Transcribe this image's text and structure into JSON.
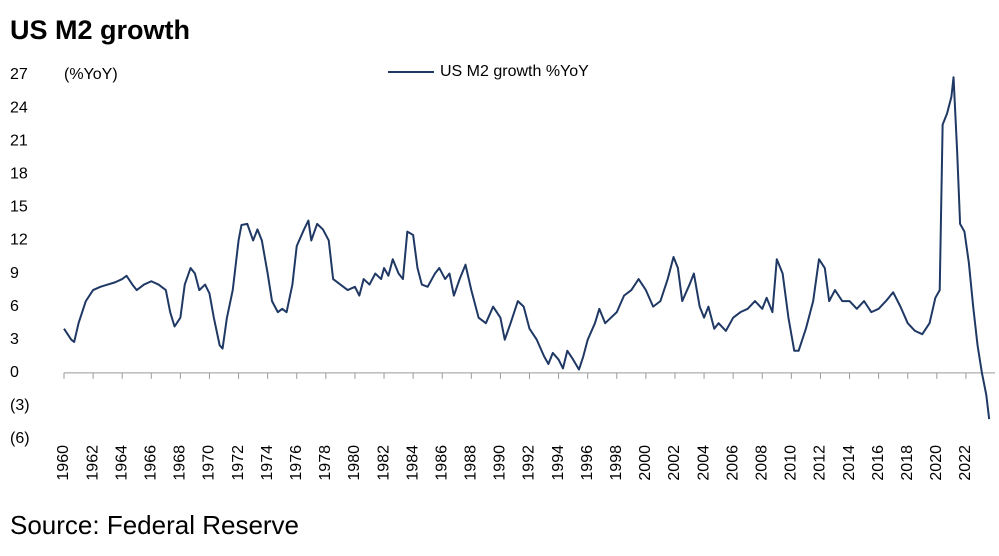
{
  "chart_data": {
    "type": "line",
    "title": "US M2 growth",
    "y_axis_label": "(%YoY)",
    "source": "Source: Federal Reserve",
    "xlim": [
      1960,
      2024
    ],
    "xticks": [
      1960,
      1962,
      1964,
      1966,
      1968,
      1970,
      1972,
      1974,
      1976,
      1978,
      1980,
      1982,
      1984,
      1986,
      1988,
      1990,
      1992,
      1994,
      1996,
      1998,
      2000,
      2002,
      2004,
      2006,
      2008,
      2010,
      2012,
      2014,
      2016,
      2018,
      2020,
      2022
    ],
    "ylim": [
      -6,
      27
    ],
    "yticks": [
      {
        "value": -6,
        "label": "(6)"
      },
      {
        "value": -3,
        "label": "(3)"
      },
      0,
      3,
      6,
      9,
      12,
      15,
      18,
      21,
      24,
      27
    ],
    "grid": false,
    "legend": "top",
    "x": [
      1960,
      1960.5,
      1960.7,
      1961,
      1961.5,
      1962,
      1962.5,
      1963,
      1963.5,
      1964,
      1964.3,
      1964.7,
      1965,
      1965.5,
      1966,
      1966.5,
      1967,
      1967.3,
      1967.6,
      1968,
      1968.3,
      1968.7,
      1969,
      1969.3,
      1969.7,
      1970,
      1970.3,
      1970.7,
      1970.9,
      1971.2,
      1971.6,
      1972,
      1972.2,
      1972.6,
      1973,
      1973.3,
      1973.6,
      1974,
      1974.3,
      1974.7,
      1975,
      1975.3,
      1975.7,
      1976,
      1976.5,
      1976.8,
      1977,
      1977.4,
      1977.8,
      1978.2,
      1978.5,
      1979,
      1979.5,
      1980,
      1980.3,
      1980.6,
      1981,
      1981.4,
      1981.8,
      1982,
      1982.3,
      1982.6,
      1983,
      1983.3,
      1983.6,
      1984,
      1984.3,
      1984.6,
      1985,
      1985.5,
      1985.8,
      1986.2,
      1986.5,
      1986.8,
      1987.2,
      1987.6,
      1988,
      1988.5,
      1989,
      1989.5,
      1990,
      1990.3,
      1990.7,
      1991.2,
      1991.6,
      1992,
      1992.5,
      1993,
      1993.3,
      1993.6,
      1994,
      1994.3,
      1994.6,
      1995,
      1995.4,
      1995.7,
      1996,
      1996.5,
      1996.8,
      1997.2,
      1997.6,
      1998,
      1998.5,
      1999,
      1999.5,
      2000,
      2000.5,
      2001,
      2001.5,
      2001.9,
      2002.2,
      2002.5,
      2003,
      2003.3,
      2003.7,
      2004,
      2004.3,
      2004.7,
      2005,
      2005.5,
      2006,
      2006.5,
      2007,
      2007.5,
      2008,
      2008.3,
      2008.7,
      2009,
      2009.4,
      2009.8,
      2010.2,
      2010.5,
      2011,
      2011.5,
      2011.9,
      2012.3,
      2012.6,
      2013,
      2013.5,
      2014,
      2014.5,
      2015,
      2015.5,
      2016,
      2016.5,
      2017,
      2017.5,
      2018,
      2018.5,
      2019,
      2019.5,
      2019.9,
      2020.2,
      2020.4,
      2020.7,
      2021,
      2021.15,
      2021.4,
      2021.6,
      2021.9,
      2022.2,
      2022.5,
      2022.8,
      2023.1,
      2023.4,
      2023.6
    ],
    "series": [
      {
        "name": "US M2 growth %YoY",
        "color": "#1f3864",
        "values": [
          4.0,
          3.0,
          2.8,
          4.5,
          6.5,
          7.5,
          7.8,
          8.0,
          8.2,
          8.5,
          8.8,
          8.0,
          7.5,
          8.0,
          8.3,
          8.0,
          7.5,
          5.5,
          4.2,
          5.0,
          8.0,
          9.5,
          9.0,
          7.5,
          8.0,
          7.2,
          5.0,
          2.5,
          2.2,
          5.0,
          7.5,
          12.0,
          13.4,
          13.5,
          12.0,
          13.0,
          12.0,
          9.0,
          6.5,
          5.5,
          5.8,
          5.5,
          8.0,
          11.5,
          13.0,
          13.8,
          12.0,
          13.5,
          13.0,
          12.0,
          8.5,
          8.0,
          7.5,
          7.8,
          7.0,
          8.5,
          8.0,
          9.0,
          8.5,
          9.5,
          8.8,
          10.3,
          9.0,
          8.5,
          12.8,
          12.5,
          9.5,
          8.0,
          7.8,
          9.0,
          9.5,
          8.5,
          9.0,
          7.0,
          8.5,
          9.8,
          7.5,
          5.0,
          4.5,
          6.0,
          5.0,
          3.0,
          4.5,
          6.5,
          6.0,
          4.0,
          3.0,
          1.5,
          0.8,
          1.8,
          1.2,
          0.4,
          2.0,
          1.2,
          0.3,
          1.5,
          3.0,
          4.5,
          5.8,
          4.5,
          5.0,
          5.5,
          7.0,
          7.5,
          8.5,
          7.5,
          6.0,
          6.5,
          8.5,
          10.5,
          9.5,
          6.5,
          8.0,
          9.0,
          6.0,
          5.0,
          6.0,
          4.0,
          4.5,
          3.8,
          5.0,
          5.5,
          5.8,
          6.5,
          5.8,
          6.8,
          5.5,
          10.3,
          9.0,
          5.0,
          2.0,
          2.0,
          4.0,
          6.5,
          10.3,
          9.5,
          6.5,
          7.5,
          6.5,
          6.5,
          5.8,
          6.5,
          5.5,
          5.8,
          6.5,
          7.3,
          6.0,
          4.5,
          3.8,
          3.5,
          4.5,
          6.8,
          7.5,
          22.5,
          23.5,
          25.0,
          26.8,
          20.0,
          13.5,
          12.8,
          10.0,
          6.0,
          2.5,
          0.0,
          -2.0,
          -4.2
        ]
      }
    ]
  }
}
